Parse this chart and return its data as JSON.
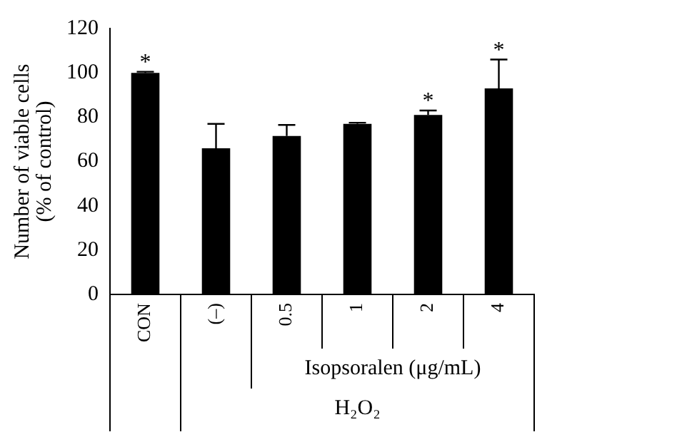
{
  "chart_data": {
    "type": "bar",
    "ylabel": "Number of viable cells\n(% of control)",
    "xlabel": "Isopsoralen (μg/mL)",
    "categories": [
      "CON",
      "(–)",
      "0.5",
      "1",
      "2",
      "4"
    ],
    "values": [
      100,
      66,
      71.5,
      77,
      81,
      93
    ],
    "errors": [
      0.5,
      11,
      5,
      0.5,
      2,
      13
    ],
    "color": "#000000",
    "ylim": [
      0,
      120
    ],
    "yticks": [
      0,
      20,
      40,
      60,
      80,
      100,
      120
    ],
    "grid": false,
    "legend": false,
    "value_labels": [
      "*",
      null,
      null,
      null,
      "*",
      "*"
    ],
    "annotations": [
      "H₂O₂"
    ]
  }
}
